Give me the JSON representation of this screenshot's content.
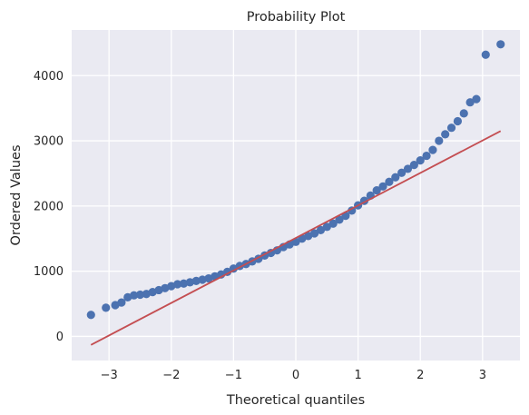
{
  "chart_data": {
    "type": "scatter",
    "title": "Probability Plot",
    "xlabel": "Theoretical quantiles",
    "ylabel": "Ordered Values",
    "xlim": [
      -3.6,
      3.6
    ],
    "ylim": [
      -370,
      4700
    ],
    "xticks": [
      -3,
      -2,
      -1,
      0,
      1,
      2,
      3
    ],
    "xtick_labels": [
      "−3",
      "−2",
      "−1",
      "0",
      "1",
      "2",
      "3"
    ],
    "yticks": [
      0,
      1000,
      2000,
      3000,
      4000
    ],
    "ytick_labels": [
      "0",
      "1000",
      "2000",
      "3000",
      "4000"
    ],
    "grid": true,
    "legend": "none",
    "colors": {
      "points": "#4c72b0",
      "fit_line": "#c44e52",
      "background": "#eaeaf2",
      "grid": "#ffffff"
    },
    "points": [
      [
        -3.29,
        330
      ],
      [
        -3.05,
        440
      ],
      [
        -2.9,
        480
      ],
      [
        -2.8,
        520
      ],
      [
        -2.7,
        600
      ],
      [
        -2.6,
        630
      ],
      [
        -2.5,
        640
      ],
      [
        -2.4,
        650
      ],
      [
        -2.3,
        680
      ],
      [
        -2.2,
        710
      ],
      [
        -2.1,
        740
      ],
      [
        -2.0,
        770
      ],
      [
        -1.9,
        800
      ],
      [
        -1.8,
        810
      ],
      [
        -1.7,
        830
      ],
      [
        -1.6,
        850
      ],
      [
        -1.5,
        870
      ],
      [
        -1.4,
        890
      ],
      [
        -1.3,
        920
      ],
      [
        -1.2,
        950
      ],
      [
        -1.1,
        990
      ],
      [
        -1.0,
        1040
      ],
      [
        -0.9,
        1080
      ],
      [
        -0.8,
        1110
      ],
      [
        -0.7,
        1150
      ],
      [
        -0.6,
        1190
      ],
      [
        -0.5,
        1240
      ],
      [
        -0.4,
        1280
      ],
      [
        -0.3,
        1320
      ],
      [
        -0.2,
        1370
      ],
      [
        -0.1,
        1410
      ],
      [
        0.0,
        1450
      ],
      [
        0.1,
        1500
      ],
      [
        0.2,
        1540
      ],
      [
        0.3,
        1580
      ],
      [
        0.4,
        1630
      ],
      [
        0.5,
        1680
      ],
      [
        0.6,
        1730
      ],
      [
        0.7,
        1790
      ],
      [
        0.8,
        1850
      ],
      [
        0.9,
        1930
      ],
      [
        1.0,
        2010
      ],
      [
        1.1,
        2080
      ],
      [
        1.2,
        2160
      ],
      [
        1.3,
        2240
      ],
      [
        1.4,
        2300
      ],
      [
        1.5,
        2370
      ],
      [
        1.6,
        2440
      ],
      [
        1.7,
        2510
      ],
      [
        1.8,
        2570
      ],
      [
        1.9,
        2630
      ],
      [
        2.0,
        2700
      ],
      [
        2.1,
        2770
      ],
      [
        2.2,
        2860
      ],
      [
        2.3,
        3000
      ],
      [
        2.4,
        3100
      ],
      [
        2.5,
        3200
      ],
      [
        2.6,
        3300
      ],
      [
        2.7,
        3420
      ],
      [
        2.8,
        3590
      ],
      [
        2.9,
        3640
      ],
      [
        3.05,
        4320
      ],
      [
        3.29,
        4480
      ]
    ],
    "fit_line": {
      "x": [
        -3.29,
        3.29
      ],
      "y": [
        -130,
        3150
      ]
    }
  }
}
